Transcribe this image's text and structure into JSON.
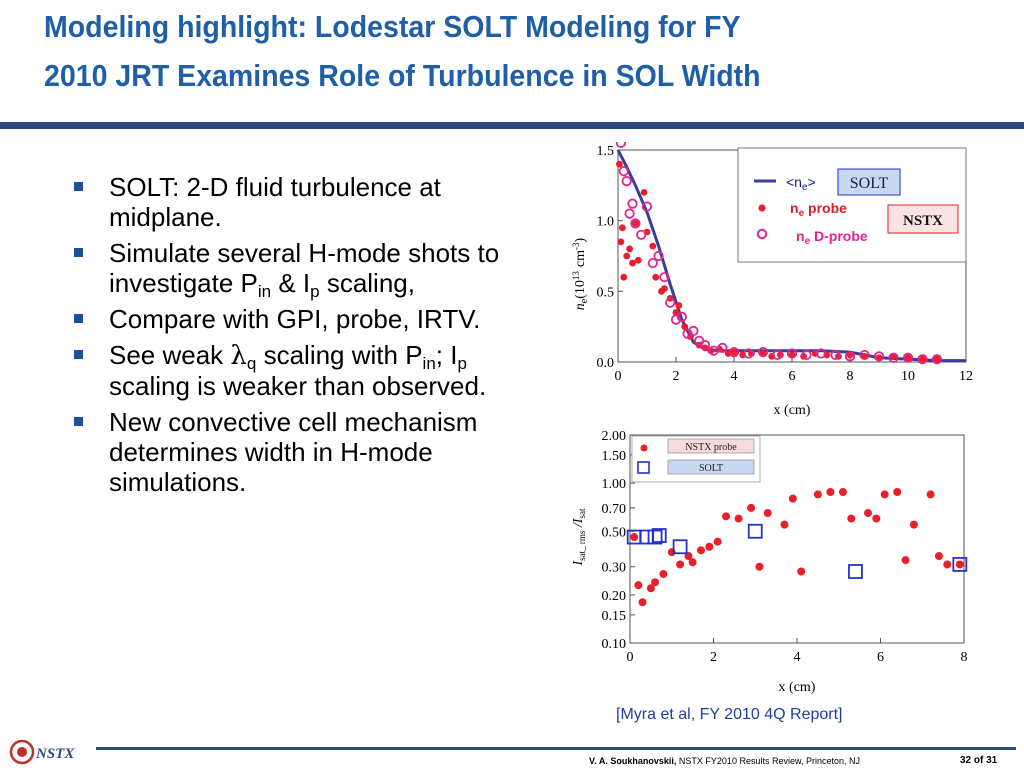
{
  "title": {
    "line1": "Modeling highlight: Lodestar SOLT Modeling for FY",
    "line2": "2010 JRT Examines Role of Turbulence in SOL Width"
  },
  "bullets": {
    "b1": {
      "text": "SOLT: 2-D fluid turbulence at midplane."
    },
    "b2": {
      "pre": "Simulate several H-mode shots to investigate P",
      "sub1": "in",
      "mid": " & I",
      "sub2": "p",
      "post": " scaling,"
    },
    "b3": {
      "text": "Compare with GPI, probe, IRTV."
    },
    "b4": {
      "pre": "See weak ",
      "symbol": "λ",
      "sub1": "q",
      "mid": " scaling with P",
      "sub2": "in",
      "mid2": ";  I",
      "sub3": "p",
      "post": " scaling is weaker than observed."
    },
    "b5": {
      "text": "New convective cell mechanism determines width in H-mode simulations."
    }
  },
  "citation": "[Myra et al, FY 2010 4Q Report]",
  "footer": {
    "author": "V. A. Soukhanovskii,",
    "event": " NSTX FY2010 Results Review, Princeton, NJ",
    "page": "32 of 31",
    "logo_text": "NSTX"
  },
  "colors": {
    "title": "#1f5fa8",
    "rule": "#2c4a7e",
    "probe": "#e8202a",
    "dprobe": "#e0258f",
    "solt": "#3a3c9e",
    "solt_box": "#2233cc"
  },
  "chart_data": [
    {
      "type": "scatter",
      "xlabel": "x (cm)",
      "ylabel_parts": {
        "n": "n",
        "e": "e",
        "mid": "(10",
        "exp": "13",
        "unit": "cm",
        "uexp": "-3",
        "close": ")"
      },
      "xlim": [
        0,
        12
      ],
      "ylim": [
        0,
        1.5
      ],
      "xticks": [
        "0",
        "2",
        "4",
        "6",
        "8",
        "10",
        "12"
      ],
      "yticks": [
        "0.0",
        "0.5",
        "1.0",
        "1.5"
      ],
      "legend": {
        "solt": {
          "sym": "<n",
          "sub": "e",
          "end": ">",
          "label": "SOLT"
        },
        "probe": {
          "n": "n",
          "sub": "e",
          "rest": " probe",
          "label": "NSTX"
        },
        "dprobe": {
          "n": "n",
          "sub": "e",
          "rest": " D-probe"
        }
      },
      "series": [
        {
          "name": "<ne> SOLT",
          "style": "line",
          "x": [
            0.0,
            0.3,
            0.6,
            1.0,
            1.4,
            1.8,
            2.2,
            2.6,
            3.0,
            3.5,
            4.0,
            5.0,
            6.0,
            7.0,
            8.0,
            9.0,
            10.0,
            11.0,
            12.0
          ],
          "y": [
            1.5,
            1.38,
            1.25,
            1.06,
            0.82,
            0.55,
            0.3,
            0.14,
            0.09,
            0.08,
            0.08,
            0.08,
            0.08,
            0.08,
            0.07,
            0.03,
            0.02,
            0.01,
            0.01
          ]
        },
        {
          "name": "ne probe",
          "style": "dot",
          "x": [
            0.05,
            0.1,
            0.15,
            0.2,
            0.3,
            0.4,
            0.5,
            0.6,
            0.7,
            0.9,
            1.0,
            1.2,
            1.3,
            1.5,
            1.6,
            1.8,
            2.0,
            2.1,
            2.3,
            2.5,
            2.8,
            3.0,
            3.2,
            3.5,
            3.8,
            4.0,
            4.3,
            4.6,
            5.0,
            5.3,
            5.6,
            6.0,
            6.4,
            6.8,
            7.2,
            7.6,
            8.0,
            8.5,
            9.0,
            9.5,
            10.0,
            10.5,
            11.0
          ],
          "y": [
            1.4,
            0.85,
            0.95,
            0.6,
            0.75,
            0.8,
            0.7,
            0.98,
            0.72,
            1.2,
            0.92,
            0.82,
            0.6,
            0.5,
            0.52,
            0.45,
            0.35,
            0.4,
            0.25,
            0.18,
            0.12,
            0.1,
            0.08,
            0.09,
            0.06,
            0.07,
            0.05,
            0.06,
            0.06,
            0.04,
            0.05,
            0.05,
            0.04,
            0.06,
            0.05,
            0.04,
            0.05,
            0.04,
            0.03,
            0.04,
            0.03,
            0.02,
            0.02
          ]
        },
        {
          "name": "ne D-probe",
          "style": "ring",
          "x": [
            0.1,
            0.2,
            0.3,
            0.4,
            0.5,
            0.6,
            0.8,
            1.0,
            1.2,
            1.4,
            1.6,
            1.8,
            2.0,
            2.2,
            2.4,
            2.6,
            2.8,
            3.0,
            3.3,
            3.6,
            4.0,
            4.5,
            5.0,
            5.5,
            6.0,
            6.5,
            7.0,
            7.5,
            8.0,
            8.5,
            9.0,
            9.5,
            10.0,
            10.5,
            11.0
          ],
          "y": [
            1.55,
            1.35,
            1.28,
            1.05,
            1.12,
            0.98,
            0.9,
            1.1,
            0.7,
            0.75,
            0.6,
            0.42,
            0.3,
            0.32,
            0.2,
            0.22,
            0.15,
            0.12,
            0.08,
            0.1,
            0.07,
            0.06,
            0.07,
            0.05,
            0.06,
            0.05,
            0.06,
            0.05,
            0.04,
            0.05,
            0.04,
            0.03,
            0.03,
            0.02,
            0.02
          ]
        }
      ]
    },
    {
      "type": "scatter",
      "xlabel": "x (cm)",
      "ylabel_parts": {
        "i": "I",
        "sub": "sat_ rms",
        "mid": " /I",
        "sub2": "sat"
      },
      "xlim": [
        0,
        8
      ],
      "ylim": [
        0.1,
        2.0
      ],
      "yscale": "log",
      "xticks": [
        "0",
        "2",
        "4",
        "6",
        "8"
      ],
      "yticks": [
        "0.10",
        "0.15",
        "0.20",
        "0.30",
        "0.50",
        "0.70",
        "1.00",
        "1.50",
        "2.00"
      ],
      "legend": {
        "probe": "NSTX probe",
        "solt": "SOLT"
      },
      "series": [
        {
          "name": "NSTX probe",
          "style": "dot",
          "x": [
            0.1,
            0.2,
            0.3,
            0.5,
            0.6,
            0.8,
            1.0,
            1.2,
            1.4,
            1.5,
            1.7,
            1.9,
            2.1,
            2.3,
            2.6,
            2.9,
            3.1,
            3.3,
            3.7,
            3.9,
            4.1,
            4.5,
            4.8,
            5.1,
            5.3,
            5.7,
            5.9,
            6.1,
            6.4,
            6.6,
            6.8,
            7.2,
            7.4,
            7.6,
            7.9
          ],
          "y": [
            0.46,
            0.23,
            0.18,
            0.22,
            0.24,
            0.27,
            0.37,
            0.31,
            0.35,
            0.32,
            0.38,
            0.4,
            0.43,
            0.62,
            0.6,
            0.7,
            0.3,
            0.65,
            0.55,
            0.8,
            0.28,
            0.85,
            0.88,
            0.88,
            0.6,
            0.65,
            0.6,
            0.85,
            0.88,
            0.33,
            0.55,
            0.85,
            0.35,
            0.31,
            0.31
          ]
        },
        {
          "name": "SOLT",
          "style": "square",
          "x": [
            0.1,
            0.4,
            0.6,
            0.7,
            1.2,
            3.0,
            5.4,
            7.9
          ],
          "y": [
            0.46,
            0.46,
            0.46,
            0.47,
            0.4,
            0.5,
            0.28,
            0.31
          ]
        }
      ]
    }
  ]
}
